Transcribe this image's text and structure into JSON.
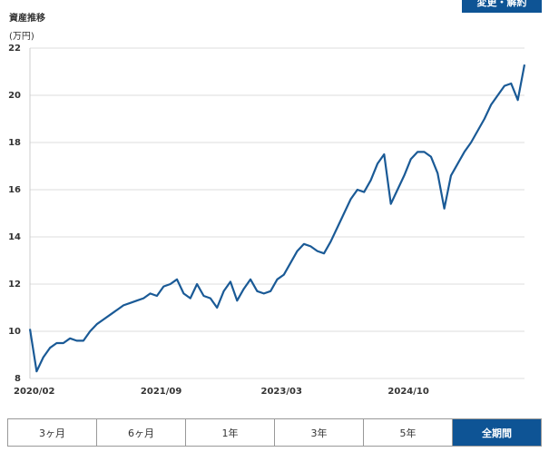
{
  "top_button": "変更・解約",
  "period_buttons": [
    "3ヶ月",
    "6ヶ月",
    "1年",
    "3年",
    "5年",
    "全期間"
  ],
  "active_period": 5,
  "chart_data": {
    "type": "line",
    "title": "資産推移",
    "y_label": "(万円)",
    "x": [
      "2020/02",
      "2020/03",
      "2020/04",
      "2020/05",
      "2020/06",
      "2020/07",
      "2020/08",
      "2020/09",
      "2020/10",
      "2020/11",
      "2020/12",
      "2021/01",
      "2021/02",
      "2021/03",
      "2021/04",
      "2021/05",
      "2021/06",
      "2021/07",
      "2021/08",
      "2021/09",
      "2021/10",
      "2021/11",
      "2021/12",
      "2022/01",
      "2022/02",
      "2022/03",
      "2022/04",
      "2022/05",
      "2022/06",
      "2022/07",
      "2022/08",
      "2022/09",
      "2022/10",
      "2022/11",
      "2022/12",
      "2023/01",
      "2023/02",
      "2023/03",
      "2023/04",
      "2023/05",
      "2023/06",
      "2023/07",
      "2023/08",
      "2023/09",
      "2023/10",
      "2023/11",
      "2023/12",
      "2024/01",
      "2024/02",
      "2024/03",
      "2024/04",
      "2024/05",
      "2024/06",
      "2024/07",
      "2024/08",
      "2024/09",
      "2024/10",
      "2024/11",
      "2024/12",
      "2025/01",
      "2025/02",
      "2025/03",
      "2025/04",
      "2025/05",
      "2025/06",
      "2025/07",
      "2025/08",
      "2025/09",
      "2025/10",
      "2025/11",
      "2025/12",
      "2026/01",
      "2026/02",
      "2026/03",
      "2026/04"
    ],
    "series": [
      {
        "color": "#1a5a96",
        "values": [
          10.1,
          8.3,
          8.9,
          9.3,
          9.5,
          9.5,
          9.7,
          9.6,
          9.6,
          10.0,
          10.3,
          10.5,
          10.7,
          10.9,
          11.1,
          11.2,
          11.3,
          11.4,
          11.6,
          11.5,
          11.9,
          12.0,
          12.2,
          11.6,
          11.4,
          12.0,
          11.5,
          11.4,
          11.0,
          11.7,
          12.1,
          11.3,
          11.8,
          12.2,
          11.7,
          11.6,
          11.7,
          12.2,
          12.4,
          12.9,
          13.4,
          13.7,
          13.6,
          13.4,
          13.3,
          13.8,
          14.4,
          15.0,
          15.6,
          16.0,
          15.9,
          16.4,
          17.1,
          17.5,
          15.4,
          16.0,
          16.6,
          17.3,
          17.6,
          17.6,
          17.4,
          16.7,
          15.2,
          16.6,
          17.1,
          17.6,
          18.0,
          18.5,
          19.0,
          19.6,
          20.0,
          20.4,
          20.5,
          19.8,
          21.3
        ]
      }
    ],
    "xticks": [
      "2020/02",
      "2021/09",
      "2023/03",
      "2024/10"
    ],
    "ylim": [
      8,
      22
    ],
    "yticks": [
      8,
      10,
      12,
      14,
      16,
      18,
      20,
      22
    ],
    "grid": true
  }
}
